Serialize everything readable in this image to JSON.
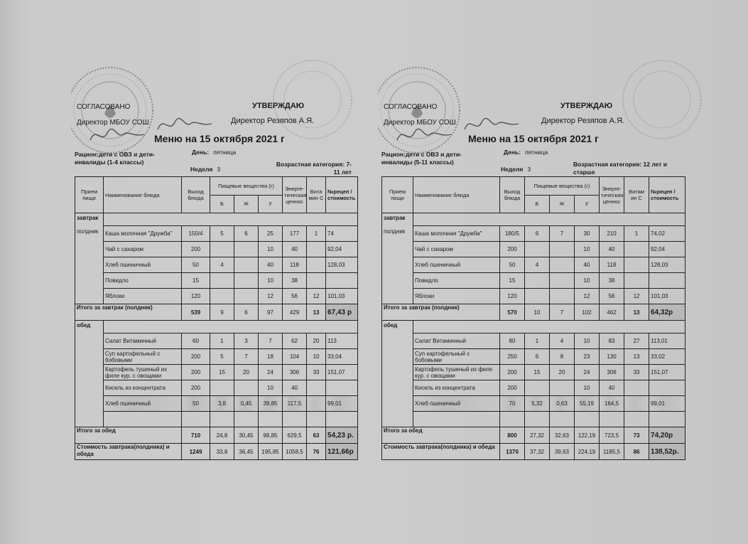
{
  "menus": [
    {
      "id": "left",
      "approved_label": "СОГЛАСОВАНО",
      "director_school": "Директор МБОУ СОШ",
      "approve_label": "УТВЕРЖДАЮ",
      "director_name": "Директор Резяпов А.Я.",
      "title": "Меню на 15 октября 2021 г",
      "ration": "Рацион:дети с ОВЗ и дети-инвалиды (1-4 классы)",
      "day_label": "День:",
      "day": "пятница",
      "week_label": "Неделя",
      "week": "3",
      "age_label": "Возрастная категория:",
      "age": "7-11 лет",
      "headers": {
        "meal": "Прием пищи",
        "dish": "Наименование блюда",
        "output": "Выход блюда",
        "nutrients": "Пищевые вещества (г)",
        "b": "Б",
        "zh": "Ж",
        "u": "У",
        "energy": "Энерге-тическая ценнос",
        "vitamin": "Вита мин С",
        "price": "№рецеп /стоимость"
      },
      "breakfast": {
        "label": "завтрак",
        "sublabel": "полдник",
        "items": [
          [
            "Каша молочная \"Дружба\"",
            "150/4",
            "5",
            "6",
            "25",
            "177",
            "1",
            "74"
          ],
          [
            "Чай с сахаром",
            "200",
            "",
            "",
            "10",
            "40",
            "",
            "92,04"
          ],
          [
            "Хлеб пшеничный",
            "50",
            "4",
            "",
            "40",
            "118",
            "",
            "128,03"
          ],
          [
            "Повидло",
            "15",
            "",
            "",
            "10",
            "38",
            "",
            ""
          ],
          [
            "Яблоки",
            "120",
            "",
            "",
            "12",
            "56",
            "12",
            "101,03"
          ]
        ],
        "total": [
          "Итого за завтрак (полдник)",
          "539",
          "9",
          "6",
          "97",
          "429",
          "13",
          "67,43 р"
        ]
      },
      "lunch": {
        "label": "обед",
        "items": [
          [
            "Салат Витаминный",
            "60",
            "1",
            "3",
            "7",
            "62",
            "20",
            "113"
          ],
          [
            "Суп картофельный с бобовыми",
            "200",
            "5",
            "7",
            "18",
            "104",
            "10",
            "33,04"
          ],
          [
            "Картофель тушеный из филе кур. с овощами",
            "200",
            "15",
            "20",
            "24",
            "306",
            "33",
            "151,07"
          ],
          [
            "Кисель из концентрата",
            "200",
            "",
            "",
            "10",
            "40",
            "",
            ""
          ],
          [
            "Хлеб пшеничный",
            "50",
            "3,8",
            "0,45",
            "39,85",
            "117,5",
            "",
            "99,01"
          ],
          [
            "",
            "",
            "",
            "",
            "",
            "",
            "",
            ""
          ]
        ],
        "total": [
          "Итого за обед",
          "710",
          "24,8",
          "30,45",
          "98,85",
          "629,5",
          "63",
          "54,23 р."
        ]
      },
      "grand_total": [
        "Стоимость завтрака(полдника) и обеда",
        "1249",
        "33,8",
        "36,45",
        "195,85",
        "1058,5",
        "76",
        "121,66р"
      ]
    },
    {
      "id": "right",
      "approved_label": "СОГЛАСОВАНО",
      "director_school": "Директор МБОУ СОШ",
      "approve_label": "УТВЕРЖДАЮ",
      "director_name": "Директор Резяпов А.Я.",
      "title": "Меню на 15 октября 2021 г",
      "ration": "Рацион:дети с ОВЗ и дети-инвалиды (5-11 классы)",
      "day_label": "День:",
      "day": "пятница",
      "week_label": "Неделя",
      "week": "3",
      "age_label": "Возрастная категория:",
      "age": "12 лет и старше",
      "headers": {
        "meal": "Прием пищи",
        "dish": "Наименование блюда",
        "output": "Выход блюда",
        "nutrients": "Пищевые вещества (г)",
        "b": "Б",
        "zh": "Ж",
        "u": "У",
        "energy": "Энерге-тическая ценнос",
        "vitamin": "Витам ин С",
        "price": "№рецеп /стоимость"
      },
      "breakfast": {
        "label": "завтрак",
        "sublabel": "полдник",
        "items": [
          [
            "Каша молочная \"Дружба\"",
            "180/5",
            "6",
            "7",
            "30",
            "210",
            "1",
            "74,02"
          ],
          [
            "Чай с сахаром",
            "200",
            "",
            "",
            "10",
            "40",
            "",
            "92,04"
          ],
          [
            "Хлеб пшеничный",
            "50",
            "4",
            "",
            "40",
            "118",
            "",
            "128,03"
          ],
          [
            "Повидло",
            "15",
            "",
            "",
            "10",
            "38",
            "",
            ""
          ],
          [
            "Яблоки",
            "120",
            "",
            "",
            "12",
            "56",
            "12",
            "101,03"
          ]
        ],
        "total": [
          "Итого за завтрак (полдник)",
          "570",
          "10",
          "7",
          "102",
          "462",
          "13",
          "64,32р"
        ]
      },
      "lunch": {
        "label": "обед",
        "items": [
          [
            "Салат Витаминный",
            "80",
            "1",
            "4",
            "10",
            "83",
            "27",
            "113,01"
          ],
          [
            "Суп картофельный с бобовыми",
            "250",
            "6",
            "8",
            "23",
            "130",
            "13",
            "33,02"
          ],
          [
            "Картофель тушеный из филе кур. с овощами",
            "200",
            "15",
            "20",
            "24",
            "306",
            "33",
            "151,07"
          ],
          [
            "Кисель из концентрата",
            "200",
            "",
            "",
            "10",
            "40",
            "",
            ""
          ],
          [
            "Хлеб пшеничный",
            "70",
            "5,32",
            "0,63",
            "55,19",
            "164,5",
            "",
            "99,01"
          ],
          [
            "",
            "",
            "",
            "",
            "",
            "",
            "",
            ""
          ]
        ],
        "total": [
          "Итого за обед",
          "800",
          "27,32",
          "32,63",
          "122,19",
          "723,5",
          "73",
          "74,20р"
        ]
      },
      "grand_total": [
        "Стоимость завтрака(полдника) и обеда",
        "1370",
        "37,32",
        "39,63",
        "224,19",
        "1185,5",
        "86",
        "138,52р."
      ]
    }
  ]
}
